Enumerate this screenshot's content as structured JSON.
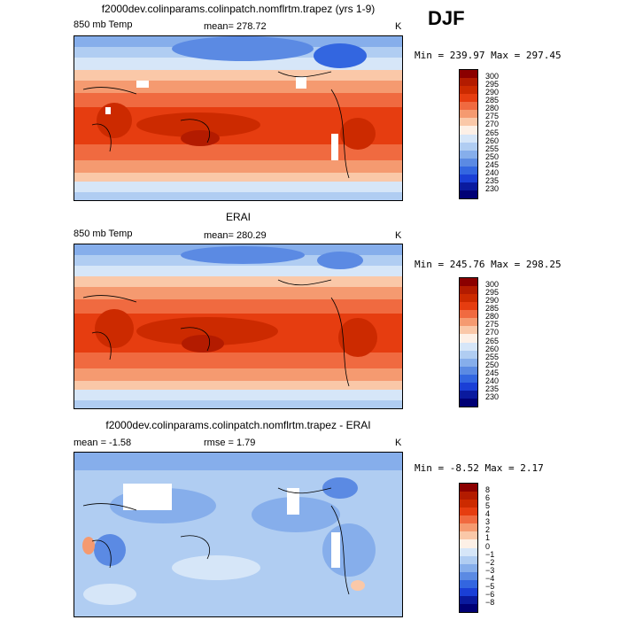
{
  "season": "DJF",
  "panels": [
    {
      "title": "f2000dev.colinparams.colinpatch.nomflrtm.trapez (yrs 1-9)",
      "left_label": "850 mb Temp",
      "center_label": "mean=  278.72",
      "units": "K",
      "minmax": "Min = 239.97 Max = 297.45",
      "colorbar_labels": [
        "300",
        "295",
        "290",
        "285",
        "280",
        "275",
        "270",
        "265",
        "260",
        "255",
        "250",
        "245",
        "240",
        "235",
        "230"
      ],
      "colors": [
        "#8b0000",
        "#b31b00",
        "#cc2a00",
        "#e63d10",
        "#f06a40",
        "#f59a70",
        "#fac8a8",
        "#fdf0e6",
        "#d6e6f8",
        "#b0cdf2",
        "#86aeeb",
        "#5b8ae3",
        "#3366e0",
        "#1a3fd6",
        "#0a1a9e",
        "#000075"
      ]
    },
    {
      "title": "ERAI",
      "left_label": "850 mb Temp",
      "center_label": "mean=  280.29",
      "units": "K",
      "minmax": "Min = 245.76 Max = 298.25",
      "colorbar_labels": [
        "300",
        "295",
        "290",
        "285",
        "280",
        "275",
        "270",
        "265",
        "260",
        "255",
        "250",
        "245",
        "240",
        "235",
        "230"
      ],
      "colors": [
        "#8b0000",
        "#b31b00",
        "#cc2a00",
        "#e63d10",
        "#f06a40",
        "#f59a70",
        "#fac8a8",
        "#fdf0e6",
        "#d6e6f8",
        "#b0cdf2",
        "#86aeeb",
        "#5b8ae3",
        "#3366e0",
        "#1a3fd6",
        "#0a1a9e",
        "#000075"
      ]
    },
    {
      "title": "f2000dev.colinparams.colinpatch.nomflrtm.trapez - ERAI",
      "left_label": "mean =   -1.58",
      "center_label": "rmse =    1.79",
      "units": "K",
      "minmax": "Min =  -8.52 Max =    2.17",
      "colorbar_labels": [
        "8",
        "6",
        "5",
        "4",
        "3",
        "2",
        "1",
        "0",
        "−1",
        "−2",
        "−3",
        "−4",
        "−5",
        "−6",
        "−8"
      ],
      "colors": [
        "#8b0000",
        "#b31b00",
        "#cc2a00",
        "#e63d10",
        "#f06a40",
        "#f59a70",
        "#fac8a8",
        "#fdf0e6",
        "#d6e6f8",
        "#b0cdf2",
        "#86aeeb",
        "#5b8ae3",
        "#3366e0",
        "#1a3fd6",
        "#0a1a9e",
        "#000075"
      ]
    }
  ],
  "chart_data": [
    {
      "type": "heatmap",
      "title": "f2000dev.colinparams.colinpatch.nomflrtm.trapez (yrs 1-9)",
      "variable": "850 mb Temp",
      "units": "K",
      "mean": 278.72,
      "min": 239.97,
      "max": 297.45,
      "contour_levels": [
        230,
        235,
        240,
        245,
        250,
        255,
        260,
        265,
        270,
        275,
        280,
        285,
        290,
        295,
        300
      ]
    },
    {
      "type": "heatmap",
      "title": "ERAI",
      "variable": "850 mb Temp",
      "units": "K",
      "mean": 280.29,
      "min": 245.76,
      "max": 298.25,
      "contour_levels": [
        230,
        235,
        240,
        245,
        250,
        255,
        260,
        265,
        270,
        275,
        280,
        285,
        290,
        295,
        300
      ]
    },
    {
      "type": "heatmap",
      "title": "f2000dev.colinparams.colinpatch.nomflrtm.trapez - ERAI",
      "units": "K",
      "mean": -1.58,
      "rmse": 1.79,
      "min": -8.52,
      "max": 2.17,
      "contour_levels": [
        -8,
        -6,
        -5,
        -4,
        -3,
        -2,
        -1,
        0,
        1,
        2,
        3,
        4,
        5,
        6,
        8
      ]
    }
  ]
}
